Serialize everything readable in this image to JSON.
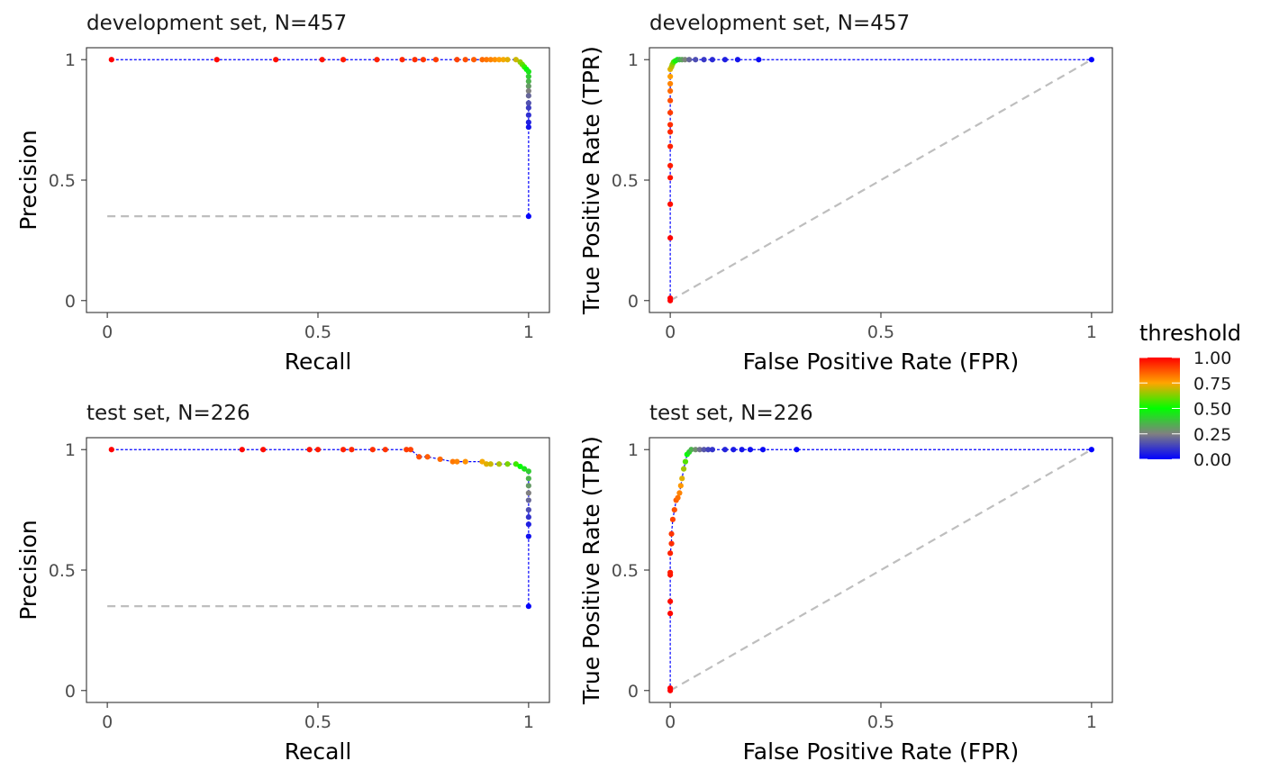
{
  "chart_data": [
    {
      "type": "line",
      "subtype": "precision-recall",
      "title": "development set, N=457",
      "xlabel": "Recall",
      "ylabel": "Precision",
      "xlim": [
        0,
        1
      ],
      "ylim": [
        0,
        1
      ],
      "x_ticks": [
        "0",
        "0.5",
        "1"
      ],
      "y_ticks": [
        "0",
        "0.5",
        "1"
      ],
      "baseline": {
        "style": "dashed",
        "x": [
          0,
          1
        ],
        "y": [
          0.35,
          0.35
        ]
      },
      "series": [
        {
          "x": [
            0.01,
            0.26,
            0.4,
            0.51,
            0.56,
            0.64,
            0.7,
            0.73,
            0.75,
            0.78,
            0.83,
            0.85,
            0.87,
            0.89,
            0.9,
            0.91,
            0.92,
            0.93,
            0.94,
            0.95,
            0.97,
            0.98,
            0.985,
            0.99,
            0.995,
            1,
            1,
            1,
            1,
            1,
            1,
            1,
            1,
            1,
            1,
            1,
            1
          ],
          "y": [
            1,
            1,
            1,
            1,
            1,
            1,
            1,
            1,
            1,
            1,
            1,
            1,
            1,
            1,
            1,
            1,
            1,
            1,
            1,
            1,
            1,
            0.99,
            0.98,
            0.97,
            0.96,
            0.95,
            0.93,
            0.91,
            0.89,
            0.87,
            0.85,
            0.82,
            0.8,
            0.77,
            0.74,
            0.72,
            0.35
          ],
          "threshold": [
            1,
            0.99,
            0.98,
            0.97,
            0.96,
            0.95,
            0.94,
            0.93,
            0.92,
            0.91,
            0.9,
            0.88,
            0.86,
            0.84,
            0.82,
            0.8,
            0.78,
            0.76,
            0.74,
            0.72,
            0.7,
            0.65,
            0.6,
            0.55,
            0.5,
            0.45,
            0.4,
            0.35,
            0.3,
            0.25,
            0.2,
            0.16,
            0.12,
            0.09,
            0.06,
            0.04,
            0.01
          ]
        }
      ]
    },
    {
      "type": "line",
      "subtype": "roc",
      "title": "development set, N=457",
      "xlabel": "False Positive Rate (FPR)",
      "ylabel": "True Positive Rate (TPR)",
      "xlim": [
        0,
        1
      ],
      "ylim": [
        0,
        1
      ],
      "x_ticks": [
        "0",
        "0.5",
        "1"
      ],
      "y_ticks": [
        "0",
        "0.5",
        "1"
      ],
      "baseline": {
        "style": "dashed",
        "x": [
          0,
          1
        ],
        "y": [
          0,
          1
        ]
      },
      "series": [
        {
          "x": [
            0,
            0,
            0,
            0,
            0,
            0,
            0,
            0,
            0,
            0,
            0,
            0,
            0,
            0,
            0,
            0.003,
            0.005,
            0.008,
            0.012,
            0.017,
            0.022,
            0.028,
            0.035,
            0.045,
            0.06,
            0.08,
            0.1,
            0.13,
            0.16,
            0.21,
            1
          ],
          "y": [
            0,
            0.01,
            0.26,
            0.4,
            0.51,
            0.56,
            0.64,
            0.7,
            0.73,
            0.78,
            0.83,
            0.87,
            0.9,
            0.93,
            0.96,
            0.97,
            0.98,
            0.99,
            0.995,
            1,
            1,
            1,
            1,
            1,
            1,
            1,
            1,
            1,
            1,
            1,
            1
          ],
          "threshold": [
            1,
            1,
            0.99,
            0.98,
            0.97,
            0.96,
            0.95,
            0.94,
            0.93,
            0.91,
            0.88,
            0.84,
            0.8,
            0.76,
            0.72,
            0.68,
            0.64,
            0.58,
            0.52,
            0.45,
            0.38,
            0.32,
            0.26,
            0.2,
            0.15,
            0.11,
            0.08,
            0.06,
            0.04,
            0.02,
            0
          ]
        }
      ]
    },
    {
      "type": "line",
      "subtype": "precision-recall",
      "title": "test set, N=226",
      "xlabel": "Recall",
      "ylabel": "Precision",
      "xlim": [
        0,
        1
      ],
      "ylim": [
        0,
        1
      ],
      "x_ticks": [
        "0",
        "0.5",
        "1"
      ],
      "y_ticks": [
        "0",
        "0.5",
        "1"
      ],
      "baseline": {
        "style": "dashed",
        "x": [
          0,
          1
        ],
        "y": [
          0.35,
          0.35
        ]
      },
      "series": [
        {
          "x": [
            0.01,
            0.32,
            0.37,
            0.48,
            0.5,
            0.56,
            0.58,
            0.63,
            0.66,
            0.71,
            0.72,
            0.74,
            0.76,
            0.79,
            0.82,
            0.83,
            0.85,
            0.89,
            0.9,
            0.91,
            0.93,
            0.95,
            0.97,
            0.98,
            0.99,
            1,
            1,
            1,
            1,
            1,
            1,
            1,
            1,
            1,
            1
          ],
          "y": [
            1,
            1,
            1,
            1,
            1,
            1,
            1,
            1,
            1,
            1,
            1,
            0.97,
            0.97,
            0.96,
            0.95,
            0.95,
            0.95,
            0.95,
            0.94,
            0.94,
            0.94,
            0.94,
            0.94,
            0.93,
            0.92,
            0.91,
            0.88,
            0.85,
            0.82,
            0.79,
            0.75,
            0.72,
            0.69,
            0.64,
            0.35
          ],
          "threshold": [
            1,
            0.99,
            0.98,
            0.97,
            0.96,
            0.95,
            0.94,
            0.93,
            0.92,
            0.91,
            0.9,
            0.88,
            0.86,
            0.84,
            0.82,
            0.8,
            0.78,
            0.74,
            0.72,
            0.7,
            0.67,
            0.62,
            0.56,
            0.5,
            0.45,
            0.4,
            0.35,
            0.3,
            0.25,
            0.2,
            0.15,
            0.1,
            0.06,
            0.03,
            0.01
          ]
        }
      ]
    },
    {
      "type": "line",
      "subtype": "roc",
      "title": "test set, N=226",
      "xlabel": "False Positive Rate (FPR)",
      "ylabel": "True Positive Rate (TPR)",
      "xlim": [
        0,
        1
      ],
      "ylim": [
        0,
        1
      ],
      "x_ticks": [
        "0",
        "0.5",
        "1"
      ],
      "y_ticks": [
        "0",
        "0.5",
        "1"
      ],
      "baseline": {
        "style": "dashed",
        "x": [
          0,
          1
        ],
        "y": [
          0,
          1
        ]
      },
      "series": [
        {
          "x": [
            0,
            0,
            0,
            0,
            0,
            0,
            0,
            0.003,
            0.003,
            0.006,
            0.01,
            0.014,
            0.018,
            0.022,
            0.025,
            0.028,
            0.032,
            0.036,
            0.04,
            0.045,
            0.05,
            0.06,
            0.07,
            0.08,
            0.09,
            0.1,
            0.13,
            0.15,
            0.17,
            0.19,
            0.22,
            0.3,
            1
          ],
          "y": [
            0,
            0.01,
            0.32,
            0.37,
            0.48,
            0.49,
            0.57,
            0.61,
            0.65,
            0.71,
            0.75,
            0.79,
            0.8,
            0.82,
            0.85,
            0.88,
            0.92,
            0.95,
            0.98,
            0.99,
            1,
            1,
            1,
            1,
            1,
            1,
            1,
            1,
            1,
            1,
            1,
            1,
            1
          ],
          "threshold": [
            1,
            1,
            0.99,
            0.98,
            0.97,
            0.96,
            0.95,
            0.93,
            0.92,
            0.9,
            0.88,
            0.86,
            0.83,
            0.8,
            0.77,
            0.72,
            0.66,
            0.58,
            0.5,
            0.42,
            0.35,
            0.28,
            0.22,
            0.17,
            0.13,
            0.1,
            0.07,
            0.05,
            0.04,
            0.03,
            0.02,
            0.01,
            0
          ]
        }
      ]
    }
  ],
  "legend": {
    "title": "threshold",
    "labels": [
      "1.00",
      "0.75",
      "0.50",
      "0.25",
      "0.00"
    ],
    "values": [
      1,
      0.75,
      0.5,
      0.25,
      0
    ],
    "colors": [
      "#0000ff",
      "#808080",
      "#00ff00",
      "#ffa500",
      "#ff0000"
    ],
    "stops": [
      0,
      0.25,
      0.5,
      0.75,
      1
    ]
  },
  "style": {
    "line_color": "#0000ff",
    "baseline_color": "#bebebe",
    "panel_border": "#333333"
  }
}
